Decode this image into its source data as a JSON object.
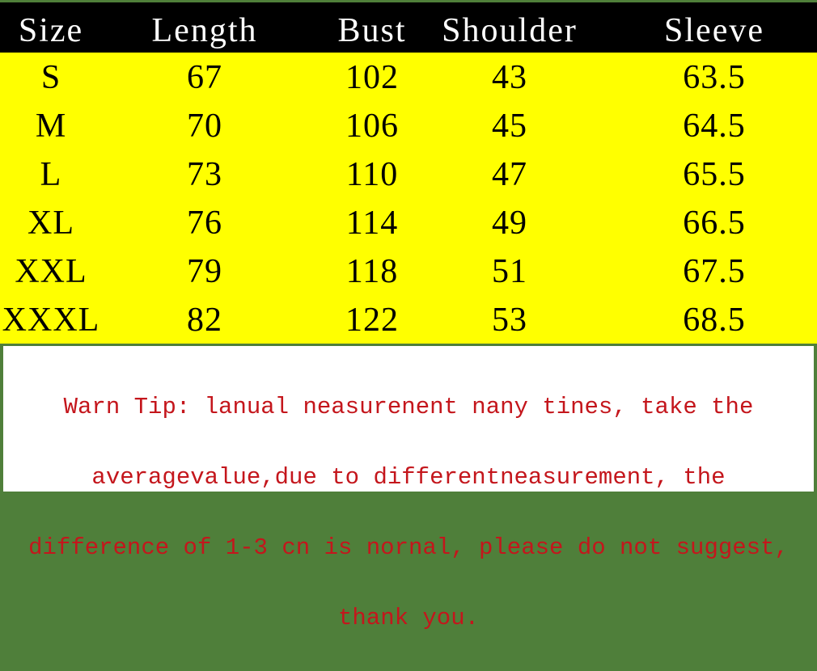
{
  "table": {
    "headers": [
      "Size",
      "Length",
      "Bust",
      "Shoulder",
      "Sleeve"
    ],
    "rows": [
      [
        "S",
        "67",
        "102",
        "43",
        "63.5"
      ],
      [
        "M",
        "70",
        "106",
        "45",
        "64.5"
      ],
      [
        "L",
        "73",
        "110",
        "47",
        "65.5"
      ],
      [
        "XL",
        "76",
        "114",
        "49",
        "66.5"
      ],
      [
        "XXL",
        "79",
        "118",
        "51",
        "67.5"
      ],
      [
        "XXXL",
        "82",
        "122",
        "53",
        "68.5"
      ]
    ]
  },
  "note": {
    "lines": [
      "Warn Tip: lanual neasurenent nany tines, take the",
      "averagevalue,due to differentneasurement, the",
      "difference of 1-3 cn is nornal, please do not suggest,",
      "thank you."
    ]
  },
  "colors": {
    "header_bg": "#000000",
    "rows_bg": "#ffff00",
    "note_text": "#c4161c",
    "border": "#4f7f3a"
  }
}
